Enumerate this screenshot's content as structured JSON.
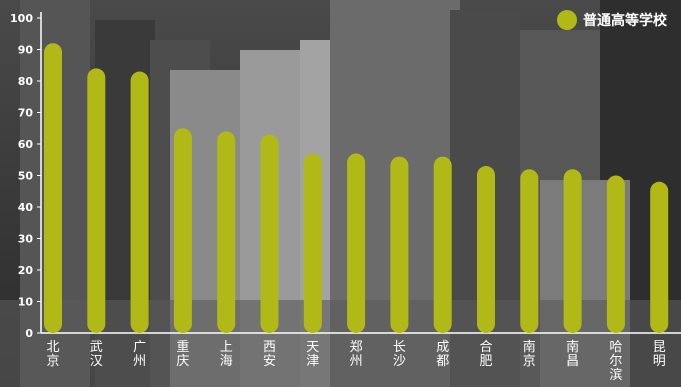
{
  "chart_data": {
    "type": "bar",
    "categories": [
      "北京",
      "武汉",
      "广州",
      "重庆",
      "上海",
      "西安",
      "天津",
      "郑州",
      "长沙",
      "成都",
      "合肥",
      "南京",
      "南昌",
      "哈尔滨",
      "昆明"
    ],
    "series": [
      {
        "name": "普通高等学校",
        "values": [
          92,
          84,
          83,
          65,
          64,
          63,
          57,
          57,
          56,
          56,
          53,
          52,
          52,
          50,
          48
        ]
      }
    ],
    "yticks": [
      0,
      10,
      20,
      30,
      40,
      50,
      60,
      70,
      80,
      90,
      100
    ],
    "ylim": [
      0,
      100
    ],
    "title": "",
    "xlabel": "",
    "ylabel": "",
    "legend_position": "top-right",
    "grid": false
  },
  "colors": {
    "bar": "#b1b916",
    "axis": "#ffffff",
    "text": "#ffffff"
  }
}
